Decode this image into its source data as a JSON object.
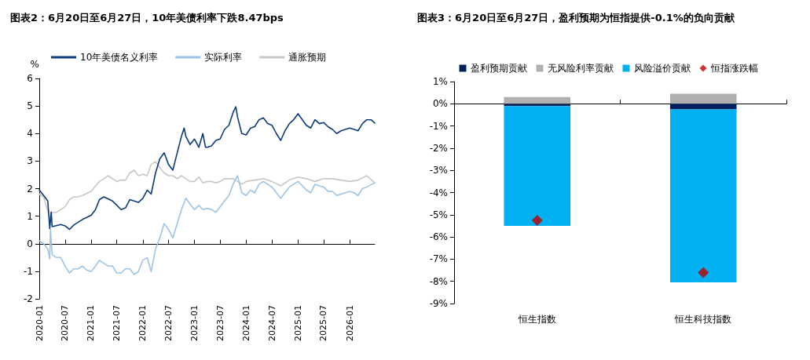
{
  "chart_data": [
    {
      "type": "line",
      "title": "图表2：6月20日至6月27日，10年美债利率下跌8.47bps",
      "ylabel": "%",
      "legend": "top",
      "marker": "none",
      "line_style": "solid",
      "xlim": [
        "2020-01-01",
        "2026-06-27"
      ],
      "xticks": [
        "2020-01",
        "2020-07",
        "2021-01",
        "2021-07",
        "2022-01",
        "2022-07",
        "2023-01",
        "2023-07",
        "2024-01",
        "2024-07",
        "2025-01",
        "2025-07",
        "2026-01"
      ],
      "ylim": [
        -2,
        6
      ],
      "yticks": [
        -2,
        -1,
        0,
        1,
        2,
        3,
        4,
        5,
        6
      ],
      "series": [
        {
          "name": "通胀预期",
          "color": "#c8c8c8",
          "x": [
            "2020-01-01",
            "2020-02-01",
            "2020-03-15",
            "2020-04-01",
            "2020-05-01",
            "2020-06-01",
            "2020-07-01",
            "2020-08-01",
            "2020-09-01",
            "2020-10-01",
            "2020-11-01",
            "2021-01-01",
            "2021-02-01",
            "2021-03-01",
            "2021-04-01",
            "2021-05-01",
            "2021-06-01",
            "2021-07-01",
            "2021-08-01",
            "2021-09-01",
            "2021-10-01",
            "2021-11-01",
            "2021-12-01",
            "2022-01-01",
            "2022-02-01",
            "2022-03-01",
            "2022-04-01",
            "2022-05-01",
            "2022-06-01",
            "2022-07-01",
            "2022-08-01",
            "2022-09-01",
            "2022-10-01",
            "2022-11-01",
            "2022-12-01",
            "2023-01-01",
            "2023-02-01",
            "2023-03-01",
            "2023-04-01",
            "2023-05-01",
            "2023-06-01",
            "2023-07-01",
            "2023-08-01",
            "2023-09-01",
            "2023-10-01",
            "2023-11-01",
            "2023-12-01",
            "2024-01-01",
            "2024-03-01",
            "2024-05-01",
            "2024-07-01",
            "2024-09-01",
            "2024-11-01",
            "2025-01-01",
            "2025-03-01",
            "2025-05-01",
            "2025-07-01",
            "2025-09-01",
            "2025-11-01",
            "2026-01-01",
            "2026-03-01",
            "2026-05-01",
            "2026-06-27"
          ],
          "values": [
            1.8,
            1.7,
            0.93,
            1.14,
            1.14,
            1.24,
            1.34,
            1.6,
            1.7,
            1.7,
            1.75,
            1.9,
            2.1,
            2.26,
            2.36,
            2.47,
            2.36,
            2.26,
            2.31,
            2.31,
            2.57,
            2.67,
            2.47,
            2.52,
            2.47,
            2.88,
            2.98,
            2.77,
            2.57,
            2.47,
            2.47,
            2.36,
            2.47,
            2.36,
            2.26,
            2.26,
            2.42,
            2.21,
            2.26,
            2.26,
            2.21,
            2.26,
            2.36,
            2.36,
            2.36,
            2.26,
            2.16,
            2.26,
            2.31,
            2.36,
            2.26,
            2.1,
            2.31,
            2.42,
            2.36,
            2.26,
            2.36,
            2.36,
            2.31,
            2.26,
            2.31,
            2.47,
            2.21
          ]
        },
        {
          "name": "实际利率",
          "color": "#9dc3e6",
          "x": [
            "2020-01-01",
            "2020-02-01",
            "2020-03-01",
            "2020-03-15",
            "2020-03-20",
            "2020-04-01",
            "2020-05-01",
            "2020-06-01",
            "2020-07-01",
            "2020-08-01",
            "2020-09-01",
            "2020-10-01",
            "2020-11-01",
            "2020-12-01",
            "2021-01-01",
            "2021-02-01",
            "2021-03-01",
            "2021-04-01",
            "2021-05-01",
            "2021-06-01",
            "2021-07-01",
            "2021-08-01",
            "2021-09-01",
            "2021-10-01",
            "2021-11-01",
            "2021-12-01",
            "2022-01-01",
            "2022-02-01",
            "2022-03-01",
            "2022-04-01",
            "2022-05-01",
            "2022-06-01",
            "2022-07-01",
            "2022-08-01",
            "2022-09-01",
            "2022-10-01",
            "2022-11-01",
            "2022-12-01",
            "2023-01-01",
            "2023-02-01",
            "2023-03-01",
            "2023-04-01",
            "2023-05-01",
            "2023-06-01",
            "2023-07-01",
            "2023-08-01",
            "2023-09-01",
            "2023-10-01",
            "2023-11-01",
            "2023-12-01",
            "2024-01-01",
            "2024-02-01",
            "2024-03-01",
            "2024-04-01",
            "2024-05-01",
            "2024-06-01",
            "2024-07-01",
            "2024-08-01",
            "2024-09-01",
            "2024-10-01",
            "2024-11-01",
            "2024-12-01",
            "2025-01-01",
            "2025-02-01",
            "2025-03-01",
            "2025-04-01",
            "2025-05-01",
            "2025-06-01",
            "2025-07-01",
            "2025-08-01",
            "2025-09-01",
            "2025-10-01",
            "2025-11-01",
            "2025-12-01",
            "2026-01-01",
            "2026-02-01",
            "2026-03-01",
            "2026-04-01",
            "2026-05-01",
            "2026-06-27"
          ],
          "values": [
            0.11,
            0.01,
            -0.19,
            -0.55,
            0.52,
            -0.4,
            -0.5,
            -0.5,
            -0.81,
            -1.06,
            -0.91,
            -0.91,
            -0.81,
            -0.96,
            -1.01,
            -0.81,
            -0.6,
            -0.71,
            -0.81,
            -0.81,
            -1.06,
            -1.06,
            -0.91,
            -0.91,
            -1.12,
            -1.01,
            -0.6,
            -0.5,
            -1.01,
            -0.19,
            0.21,
            0.73,
            0.52,
            0.21,
            0.73,
            1.24,
            1.65,
            1.44,
            1.24,
            1.39,
            1.24,
            1.29,
            1.24,
            1.14,
            1.34,
            1.55,
            1.75,
            2.16,
            2.47,
            1.85,
            1.75,
            1.95,
            1.85,
            2.16,
            2.26,
            2.16,
            2.06,
            1.85,
            1.65,
            1.85,
            2.06,
            2.16,
            2.26,
            2.1,
            1.95,
            1.85,
            2.16,
            2.1,
            2.06,
            1.9,
            1.9,
            1.75,
            1.8,
            1.85,
            1.9,
            1.85,
            1.75,
            2.0,
            2.06,
            2.21
          ]
        },
        {
          "name": "10年美债名义利率",
          "color": "#0c3b7c",
          "x": [
            "2020-01-01",
            "2020-02-01",
            "2020-03-01",
            "2020-03-15",
            "2020-03-25",
            "2020-04-01",
            "2020-06-01",
            "2020-07-01",
            "2020-08-01",
            "2020-09-01",
            "2020-11-01",
            "2021-01-01",
            "2021-02-01",
            "2021-03-01",
            "2021-04-01",
            "2021-06-01",
            "2021-07-01",
            "2021-08-01",
            "2021-09-01",
            "2021-10-01",
            "2021-12-01",
            "2022-01-01",
            "2022-02-01",
            "2022-03-01",
            "2022-04-01",
            "2022-05-01",
            "2022-06-01",
            "2022-07-01",
            "2022-08-01",
            "2022-09-01",
            "2022-10-01",
            "2022-10-20",
            "2022-11-01",
            "2022-12-01",
            "2023-01-01",
            "2023-02-01",
            "2023-03-01",
            "2023-03-20",
            "2023-04-01",
            "2023-05-01",
            "2023-06-01",
            "2023-07-01",
            "2023-08-01",
            "2023-09-01",
            "2023-10-01",
            "2023-10-20",
            "2023-11-01",
            "2023-12-01",
            "2024-01-01",
            "2024-02-01",
            "2024-03-01",
            "2024-04-01",
            "2024-05-01",
            "2024-06-01",
            "2024-07-01",
            "2024-08-01",
            "2024-09-01",
            "2024-10-01",
            "2024-11-01",
            "2024-12-01",
            "2025-01-01",
            "2025-02-01",
            "2025-03-01",
            "2025-04-01",
            "2025-05-01",
            "2025-06-01",
            "2025-07-01",
            "2025-08-01",
            "2025-09-01",
            "2025-10-01",
            "2025-11-01",
            "2025-12-01",
            "2026-01-01",
            "2026-02-01",
            "2026-03-01",
            "2026-04-01",
            "2026-05-01",
            "2026-06-01",
            "2026-06-27"
          ],
          "values": [
            1.95,
            1.75,
            1.55,
            0.55,
            1.15,
            0.62,
            0.7,
            0.65,
            0.52,
            0.68,
            0.88,
            1.03,
            1.24,
            1.6,
            1.7,
            1.55,
            1.4,
            1.24,
            1.3,
            1.6,
            1.5,
            1.65,
            1.95,
            1.8,
            2.57,
            3.08,
            3.3,
            2.88,
            2.67,
            3.3,
            3.9,
            4.2,
            3.9,
            3.6,
            3.8,
            3.5,
            4.0,
            3.5,
            3.5,
            3.55,
            3.75,
            3.8,
            4.15,
            4.3,
            4.77,
            4.97,
            4.6,
            4.0,
            3.95,
            4.2,
            4.25,
            4.5,
            4.57,
            4.36,
            4.3,
            4.0,
            3.75,
            4.1,
            4.36,
            4.5,
            4.72,
            4.5,
            4.3,
            4.2,
            4.5,
            4.36,
            4.4,
            4.25,
            4.15,
            4.0,
            4.1,
            4.15,
            4.2,
            4.15,
            4.1,
            4.36,
            4.5,
            4.5,
            4.38
          ]
        }
      ]
    },
    {
      "type": "bar",
      "title": "图表3：6月20日至6月27日，盈利预期为恒指提供-0.1%的负向贡献",
      "legend": "top",
      "stacked": true,
      "categories": [
        "恒生指数",
        "恒生科技指数"
      ],
      "ylim": [
        -9,
        1
      ],
      "yticks": [
        {
          "value": -9,
          "label": "-9%"
        },
        {
          "value": -8,
          "label": "-8%"
        },
        {
          "value": -7,
          "label": "-7%"
        },
        {
          "value": -6,
          "label": "-6%"
        },
        {
          "value": -5,
          "label": "-5%"
        },
        {
          "value": -4,
          "label": "-4%"
        },
        {
          "value": -3,
          "label": "-3%"
        },
        {
          "value": -2,
          "label": "-2%"
        },
        {
          "value": -1,
          "label": "-1%"
        },
        {
          "value": 0,
          "label": "0%"
        },
        {
          "value": 1,
          "label": "1%"
        }
      ],
      "series": [
        {
          "name": "盈利预期贡献",
          "color": "#002060",
          "values": [
            -0.1,
            -0.25
          ]
        },
        {
          "name": "无风险利率贡献",
          "color": "#b0b0b0",
          "values": [
            0.3,
            0.45
          ]
        },
        {
          "name": "风险溢价贡献",
          "color": "#00b0f0",
          "values": [
            -5.4,
            -7.8
          ]
        },
        {
          "name": "恒指涨跌幅",
          "type": "scatter",
          "marker": "diamond",
          "color": "#c00000",
          "values": [
            -5.25,
            -7.6
          ]
        }
      ]
    }
  ]
}
